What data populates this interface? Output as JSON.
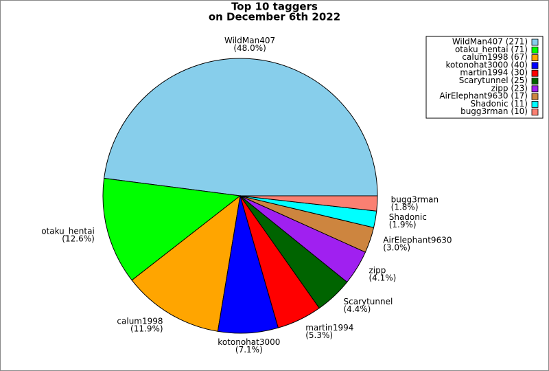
{
  "chart_data": {
    "type": "pie",
    "title": [
      "Top 10 taggers",
      "on December 6th 2022"
    ],
    "categories": [
      "WildMan407",
      "otaku_hentai",
      "calum1998",
      "kotonohat3000",
      "martin1994",
      "Scarytunnel",
      "zipp",
      "AirElephant9630",
      "Shadonic",
      "bugg3rman"
    ],
    "values": [
      271,
      71,
      67,
      40,
      30,
      25,
      23,
      17,
      11,
      10
    ],
    "percent_labels": [
      "(48.0%)",
      "(12.6%)",
      "(11.9%)",
      "(7.1%)",
      "(5.3%)",
      "(4.4%)",
      "(4.1%)",
      "(3.0%)",
      "(1.9%)",
      "(1.8%)"
    ],
    "legend_labels": [
      "WildMan407 (271)",
      "otaku_hentai (71)",
      "calum1998 (67)",
      "kotonohat3000 (40)",
      "martin1994 (30)",
      "Scarytunnel (25)",
      "zipp (23)",
      "AirElephant9630 (17)",
      "Shadonic (11)",
      "bugg3rman (10)"
    ],
    "colors": [
      "#87ceeb",
      "#00ff00",
      "#ffa500",
      "#0000ff",
      "#ff0000",
      "#006400",
      "#a020f0",
      "#cd853f",
      "#00ffff",
      "#fa8072"
    ],
    "legend": "upper right"
  }
}
